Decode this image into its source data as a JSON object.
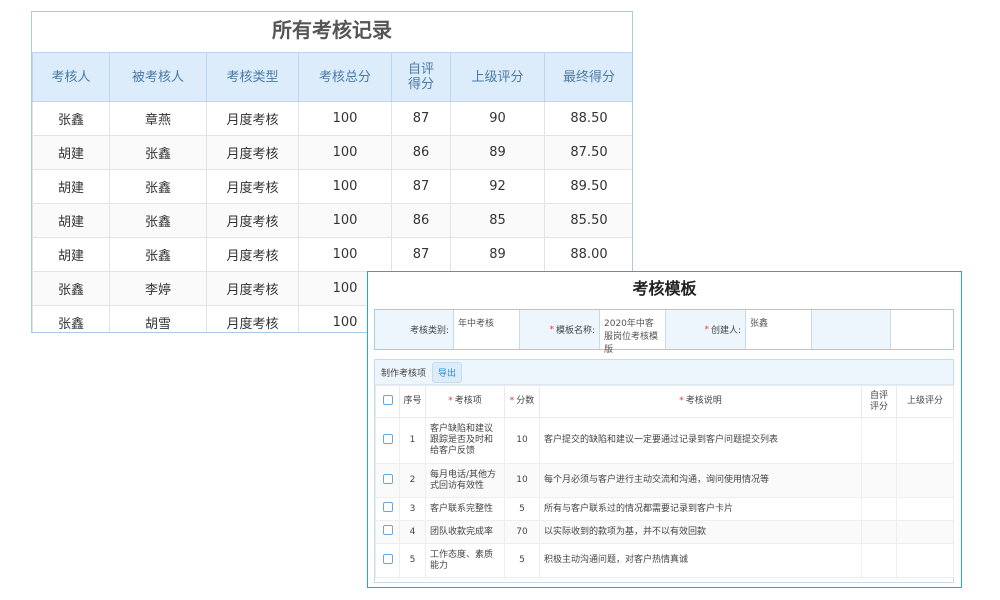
{
  "records": {
    "title": "所有考核记录",
    "columns": [
      "考核人",
      "被考核人",
      "考核类型",
      "考核总分",
      "自评得分",
      "上级评分",
      "最终得分"
    ],
    "rows": [
      [
        "张鑫",
        "章燕",
        "月度考核",
        "100",
        "87",
        "90",
        "88.50"
      ],
      [
        "胡建",
        "张鑫",
        "月度考核",
        "100",
        "86",
        "89",
        "87.50"
      ],
      [
        "胡建",
        "张鑫",
        "月度考核",
        "100",
        "87",
        "92",
        "89.50"
      ],
      [
        "胡建",
        "张鑫",
        "月度考核",
        "100",
        "86",
        "85",
        "85.50"
      ],
      [
        "胡建",
        "张鑫",
        "月度考核",
        "100",
        "87",
        "89",
        "88.00"
      ],
      [
        "张鑫",
        "李婷",
        "月度考核",
        "100",
        "",
        "",
        ""
      ],
      [
        "张鑫",
        "胡雪",
        "月度考核",
        "100",
        "",
        "",
        ""
      ]
    ]
  },
  "template": {
    "title": "考核模板",
    "form": {
      "category_label": "考核类别:",
      "category_value": "年中考核",
      "name_label": "模板名称:",
      "name_value": "2020年中客服岗位考核模版",
      "creator_label": "创建人:",
      "creator_value": "张鑫",
      "required_mark": "*"
    },
    "toolbar": {
      "label": "制作考核项",
      "export": "导出"
    },
    "columns": [
      "序号",
      "考核项",
      "分数",
      "考核说明",
      "自评评分",
      "上级评分"
    ],
    "rows": [
      [
        "1",
        "客户缺陷和建议跟踪是否及时和给客户反馈",
        "10",
        "客户提交的缺陷和建议一定要通过记录到客户问题提交列表"
      ],
      [
        "2",
        "每月电话/其他方式回访有效性",
        "10",
        "每个月必须与客户进行主动交流和沟通，询问使用情况等"
      ],
      [
        "3",
        "客户联系完整性",
        "5",
        "所有与客户联系过的情况都需要记录到客户卡片"
      ],
      [
        "4",
        "团队收款完成率",
        "70",
        "以实际收到的款项为基，并不以有效回款"
      ],
      [
        "5",
        "工作态度、素质能力",
        "5",
        "积极主动沟通问题，对客户热情真诚"
      ]
    ]
  },
  "colors": {
    "accent": "#22a7e0",
    "header_bg": "#dcecfa",
    "required": "#e33333"
  }
}
